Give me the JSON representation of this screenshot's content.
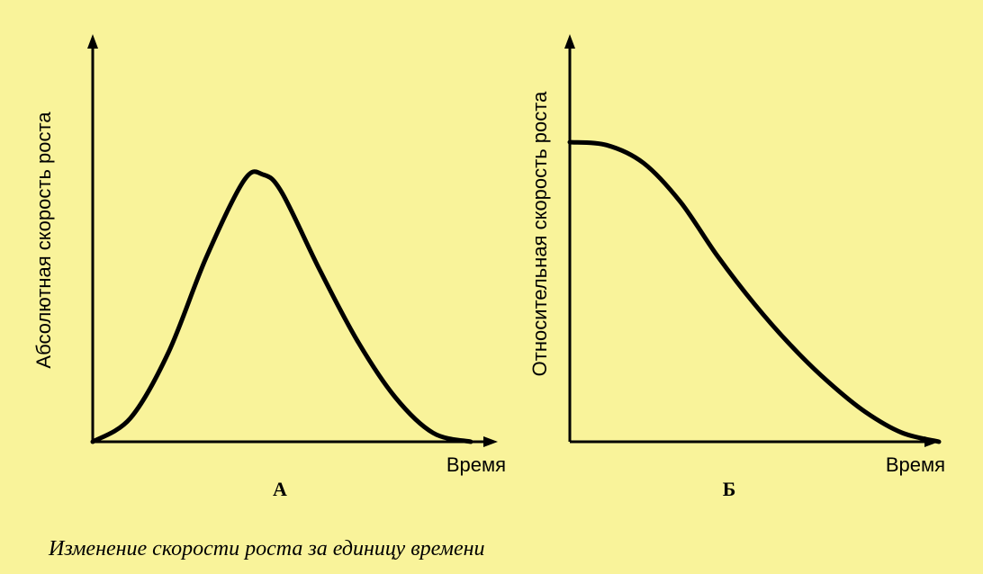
{
  "colors": {
    "background": "#f9f39a",
    "ink": "#000000"
  },
  "caption": "Изменение скорости роста за единицу времени",
  "panels": [
    {
      "letter": "А",
      "y_label": "Абсолютная скорость роста",
      "x_label": "Время"
    },
    {
      "letter": "Б",
      "y_label": "Относительная скорость роста",
      "x_label": "Время"
    }
  ],
  "chart_data": [
    {
      "type": "line",
      "title": "А",
      "xlabel": "Время",
      "ylabel": "Абсолютная скорость роста",
      "xlim": [
        0,
        1
      ],
      "ylim": [
        0,
        1
      ],
      "series": [
        {
          "x": [
            0,
            0.1,
            0.2,
            0.3,
            0.4,
            0.45,
            0.5,
            0.6,
            0.7,
            0.8,
            0.9,
            1.0
          ],
          "values": [
            0,
            0.08,
            0.3,
            0.62,
            0.88,
            0.9,
            0.84,
            0.58,
            0.34,
            0.15,
            0.03,
            0
          ]
        }
      ]
    },
    {
      "type": "line",
      "title": "Б",
      "xlabel": "Время",
      "ylabel": "Относительная скорость роста",
      "xlim": [
        0,
        1
      ],
      "ylim": [
        0,
        1
      ],
      "series": [
        {
          "x": [
            0,
            0.1,
            0.2,
            0.3,
            0.4,
            0.5,
            0.6,
            0.7,
            0.8,
            0.9,
            1.0
          ],
          "values": [
            1.0,
            0.99,
            0.93,
            0.8,
            0.62,
            0.46,
            0.32,
            0.2,
            0.1,
            0.03,
            0
          ]
        }
      ]
    }
  ]
}
